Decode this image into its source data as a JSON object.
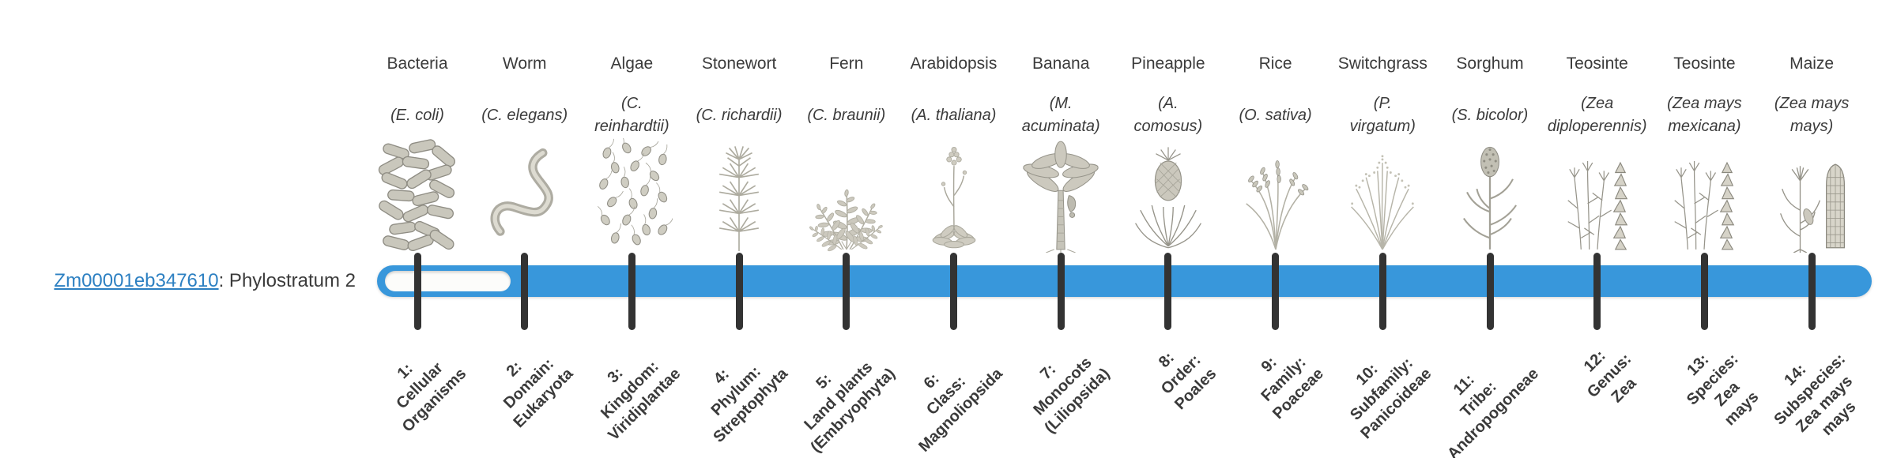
{
  "gene": {
    "id": "Zm00001eb347610",
    "suffix": ": Phylostratum 2",
    "phylostratum": 2
  },
  "colors": {
    "bar_fill": "#3897db",
    "bar_unfilled": "#fcfcfa",
    "tick": "#333333",
    "link": "#2d80c2",
    "text": "#3b3b3b",
    "icon_gray": "#b3b1a7"
  },
  "timeline": {
    "strata_total": 14,
    "filled_from_stratum": 2
  },
  "organisms": [
    {
      "name": "Bacteria",
      "species": "(E. coli)",
      "icon": "bacteria-icon"
    },
    {
      "name": "Worm",
      "species": "(C. elegans)",
      "icon": "worm-icon"
    },
    {
      "name": "Algae",
      "species": "(C.\nreinhardtii)",
      "icon": "algae-icon"
    },
    {
      "name": "Stonewort",
      "species": "(C. richardii)",
      "icon": "stonewort-icon"
    },
    {
      "name": "Fern",
      "species": "(C. braunii)",
      "icon": "fern-icon"
    },
    {
      "name": "Arabidopsis",
      "species": "(A. thaliana)",
      "icon": "arabidopsis-icon"
    },
    {
      "name": "Banana",
      "species": "(M.\nacuminata)",
      "icon": "banana-icon"
    },
    {
      "name": "Pineapple",
      "species": "(A.\ncomosus)",
      "icon": "pineapple-icon"
    },
    {
      "name": "Rice",
      "species": "(O. sativa)",
      "icon": "rice-icon"
    },
    {
      "name": "Switchgrass",
      "species": "(P.\nvirgatum)",
      "icon": "switchgrass-icon"
    },
    {
      "name": "Sorghum",
      "species": "(S. bicolor)",
      "icon": "sorghum-icon"
    },
    {
      "name": "Teosinte",
      "species": "(Zea\ndiploperennis)",
      "icon": "teosinte-diploperennis-icon"
    },
    {
      "name": "Teosinte",
      "species": "(Zea mays\nmexicana)",
      "icon": "teosinte-mexicana-icon"
    },
    {
      "name": "Maize",
      "species": "(Zea mays\nmays)",
      "icon": "maize-icon"
    }
  ],
  "strata": [
    "1:\nCellular\nOrganisms",
    "2:\nDomain:\nEukaryota",
    "3:\nKingdom:\nViridiplantae",
    "4:\nPhylum:\nStreptophyta",
    "5:\nLand plants\n(Embryophyta)",
    "6:\nClass:\nMagnoliopsida",
    "7:\nMonocots\n(Liliopsida)",
    "8:\nOrder:\nPoales",
    "9:\nFamily:\nPoaceae",
    "10:\nSubfamily:\nPanicoideae",
    "11:\nTribe:\nAndropogoneae",
    "12:\nGenus:\nZea",
    "13:\nSpecies:\nZea\nmays",
    "14:\nSubspecies:\nZea mays\nmays"
  ]
}
